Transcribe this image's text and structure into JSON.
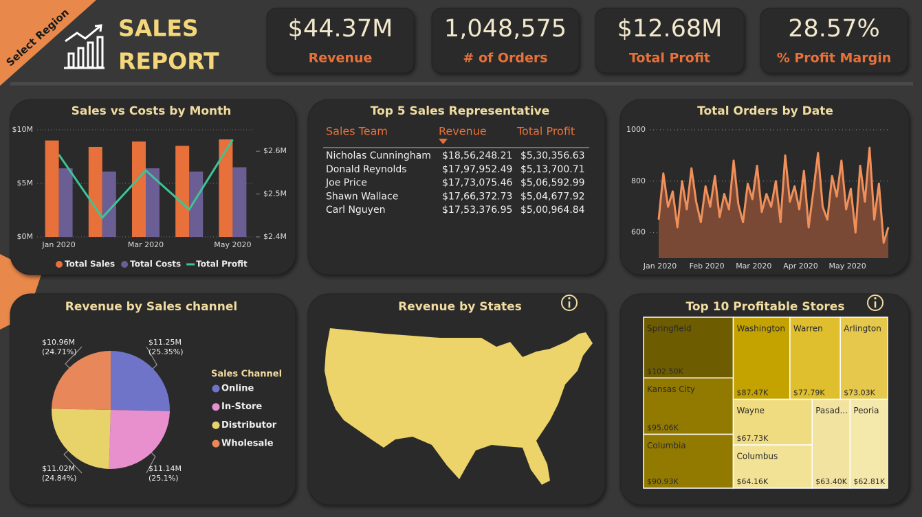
{
  "header": {
    "badge": "Select Region",
    "title": [
      "SALES",
      "REPORT"
    ]
  },
  "kpis": [
    {
      "value": "$44.37M",
      "label": "Revenue"
    },
    {
      "value": "1,048,575",
      "label": "# of Orders"
    },
    {
      "value": "$12.68M",
      "label": "Total Profit"
    },
    {
      "value": "28.57%",
      "label": "% Profit Margin"
    }
  ],
  "table": {
    "title": "Top 5 Sales Representative",
    "columns": [
      "Sales Team",
      "Revenue",
      "Total Profit"
    ],
    "rows": [
      [
        "Nicholas Cunningham",
        "$18,56,248.21",
        "$5,30,356.63"
      ],
      [
        "Donald Reynolds",
        "$17,97,952.49",
        "$5,13,700.71"
      ],
      [
        "Joe Price",
        "$17,73,075.46",
        "$5,06,592.99"
      ],
      [
        "Shawn Wallace",
        "$17,66,372.73",
        "$5,04,677.92"
      ],
      [
        "Carl Nguyen",
        "$17,53,376.95",
        "$5,00,964.84"
      ]
    ]
  },
  "map": {
    "title": "Revenue by States"
  },
  "chart_data": [
    {
      "type": "bar",
      "title": "Sales vs Costs by Month",
      "categories": [
        "Jan 2020",
        null,
        "Mar 2020",
        null,
        "May 2020"
      ],
      "series": [
        {
          "name": "Total Sales",
          "color": "#e8703a",
          "values": [
            9.0,
            8.4,
            8.9,
            8.5,
            9.1
          ]
        },
        {
          "name": "Total Costs",
          "color": "#6b5e94",
          "values": [
            6.4,
            6.1,
            6.4,
            6.1,
            6.5
          ]
        },
        {
          "name": "Total Profit",
          "color": "#3ec496",
          "type": "line",
          "axis": "y2",
          "values": [
            2.592,
            2.445,
            2.555,
            2.464,
            2.627
          ]
        }
      ],
      "ylim": [
        0,
        10
      ],
      "yticks": [
        {
          "value": 0,
          "label": "$0M"
        },
        {
          "value": 5,
          "label": "$5M"
        },
        {
          "value": 10,
          "label": "$10M"
        }
      ],
      "y2lim": [
        2.4,
        2.65
      ],
      "y2ticks": [
        {
          "value": 2.4,
          "label": "$2.4M"
        },
        {
          "value": 2.5,
          "label": "$2.5M"
        },
        {
          "value": 2.6,
          "label": "$2.6M"
        }
      ],
      "grid": true,
      "legend": "bottom"
    },
    {
      "type": "area",
      "title": "Total Orders by Date",
      "color": "#f0905a",
      "categories": [
        "Jan 2020",
        null,
        null,
        null,
        null,
        null,
        null,
        null,
        null,
        null,
        "Feb 2020",
        null,
        null,
        null,
        null,
        null,
        null,
        null,
        null,
        null,
        "Mar 2020",
        null,
        null,
        null,
        null,
        null,
        null,
        null,
        null,
        null,
        "Apr 2020",
        null,
        null,
        null,
        null,
        null,
        null,
        null,
        null,
        null,
        "May 2020",
        null,
        null,
        null,
        null,
        null,
        null,
        null,
        null,
        null
      ],
      "values": [
        650,
        830,
        700,
        760,
        620,
        800,
        690,
        850,
        720,
        640,
        780,
        700,
        820,
        660,
        750,
        690,
        880,
        710,
        640,
        790,
        730,
        860,
        680,
        750,
        700,
        800,
        640,
        900,
        720,
        780,
        690,
        840,
        620,
        760,
        910,
        700,
        650,
        820,
        740,
        880,
        690,
        770,
        600,
        860,
        720,
        930,
        650,
        790,
        560,
        620
      ],
      "ylim": [
        500,
        1000
      ],
      "yticks": [
        600,
        800,
        1000
      ],
      "grid": true
    },
    {
      "type": "pie",
      "title": "Revenue by Sales channel",
      "legend_title": "Sales Channel",
      "legend": "right",
      "categories": [
        "Online",
        "In-Store",
        "Distributor",
        "Wholesale"
      ],
      "values": [
        25.35,
        25.1,
        24.84,
        24.71
      ],
      "value_labels": [
        "$11.25M (25.35%)",
        "$11.14M (25.1%)",
        "$11.02M (24.84%)",
        "$10.96M (24.71%)"
      ],
      "colors": [
        "#6f74c8",
        "#e88fce",
        "#e8d36a",
        "#e8875a"
      ]
    },
    {
      "type": "treemap",
      "title": "Top 10 Profitable Stores",
      "categories": [
        "Springfield",
        "Kansas City",
        "Columbia",
        "Washington",
        "Warren",
        "Arlington",
        "Wayne",
        "Columbus",
        "Pasad...",
        "Peoria"
      ],
      "values": [
        102.5,
        95.06,
        90.93,
        87.47,
        77.79,
        73.03,
        67.73,
        64.16,
        63.4,
        62.81
      ],
      "value_labels": [
        "$102.50K",
        "$95.06K",
        "$90.93K",
        "$87.47K",
        "$77.79K",
        "$73.03K",
        "$67.73K",
        "$64.16K",
        "$63.40K",
        "$62.81K"
      ],
      "colors": [
        "#6e5c00",
        "#927a00",
        "#927a00",
        "#c4a300",
        "#e0bf2e",
        "#e6c84c",
        "#f0dc80",
        "#f2e296",
        "#f2e4a0",
        "#f4e8ab"
      ]
    }
  ]
}
